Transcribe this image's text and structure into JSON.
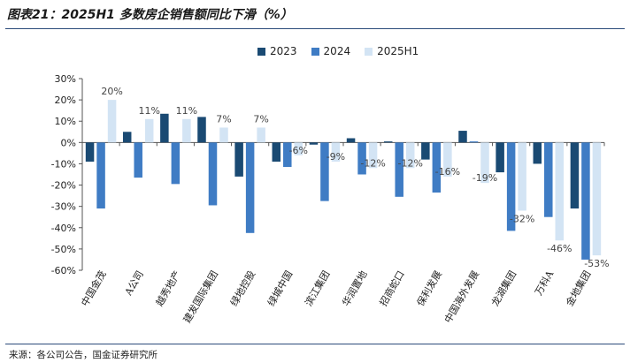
{
  "title": "图表21：2025H1 多数房企销售额同比下滑（%）",
  "source": "来源：各公司公告，国金证券研究所",
  "colors": {
    "s2023": "#1a4a73",
    "s2024": "#3f7cc4",
    "s2025H1": "#d3e4f4"
  },
  "chart_data": {
    "type": "bar",
    "title": "2025H1 多数房企销售额同比下滑（%）",
    "xlabel": "",
    "ylabel": "",
    "ylim": [
      -60,
      30
    ],
    "ytick_labels": [
      "30%",
      "20%",
      "10%",
      "0%",
      "-10%",
      "-20%",
      "-30%",
      "-40%",
      "-50%",
      "-60%"
    ],
    "yticks": [
      30,
      20,
      10,
      0,
      -10,
      -20,
      -30,
      -40,
      -50,
      -60
    ],
    "categories": [
      "中国金茂",
      "A公司",
      "越秀地产",
      "建发国际集团",
      "绿地控股",
      "绿城中国",
      "滨江集团",
      "华润置地",
      "招商蛇口",
      "保利发展",
      "中国海外发展",
      "龙湖集团",
      "万科A",
      "金地集团"
    ],
    "series": [
      {
        "name": "2023",
        "values": [
          -9,
          5,
          13.5,
          12,
          -16,
          -9,
          -1,
          2,
          0.5,
          -8,
          5.5,
          -14,
          -10,
          -31
        ]
      },
      {
        "name": "2024",
        "values": [
          -31,
          -16.5,
          -19.5,
          -29.5,
          -42.5,
          -11.5,
          -27.5,
          -15,
          -25.5,
          -23.5,
          0.5,
          -41.5,
          -35,
          -55
        ]
      },
      {
        "name": "2025H1",
        "values": [
          20,
          11,
          11,
          7,
          7,
          -6,
          -9,
          -12,
          -12,
          -16,
          -19,
          -32,
          -46,
          -53
        ]
      }
    ],
    "data_labels": [
      "20%",
      "11%",
      "11%",
      "7%",
      "7%",
      "-6%",
      "-9%",
      "-12%",
      "-12%",
      "-16%",
      "-19%",
      "-32%",
      "-46%",
      "-53%"
    ],
    "grid": false,
    "legend": "top-center"
  }
}
